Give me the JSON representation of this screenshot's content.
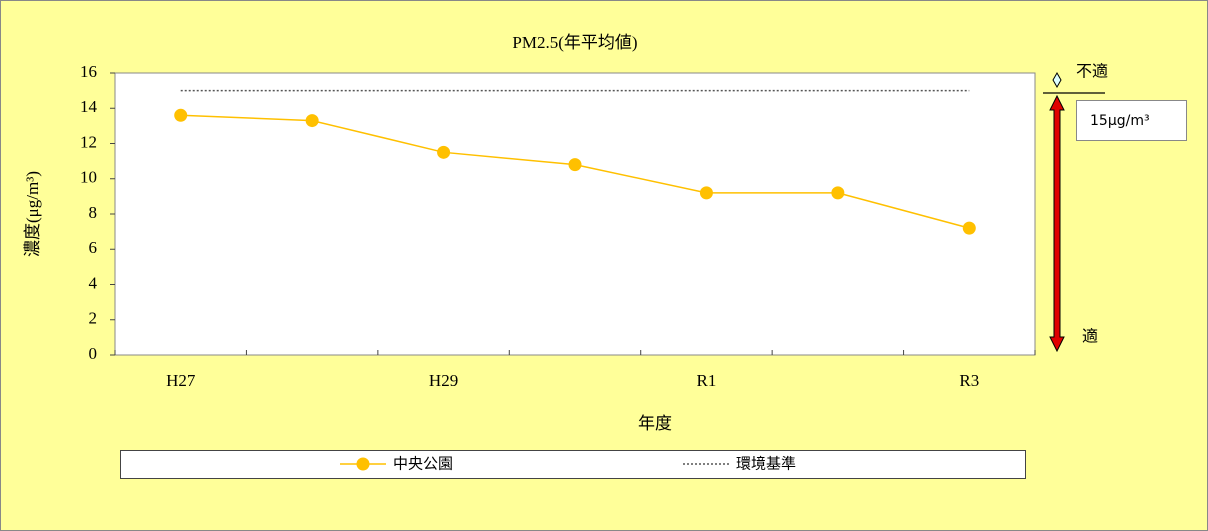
{
  "chart_data": {
    "type": "line",
    "title": "PM2.5(年平均値)",
    "x_label": "年度",
    "y_label": "濃度(μg/m³)",
    "categories": [
      "H27",
      null,
      "H29",
      null,
      "R1",
      null,
      "R3"
    ],
    "series": [
      {
        "name": "中央公園",
        "color": "#ffc000",
        "style": "solid-marker",
        "values": [
          13.6,
          13.3,
          11.5,
          10.8,
          9.2,
          9.2,
          7.2
        ]
      },
      {
        "name": "環境基準",
        "color": "#555555",
        "style": "dotted",
        "values": [
          15,
          15,
          15,
          15,
          15,
          15,
          15
        ]
      }
    ],
    "ylim": [
      0,
      16
    ],
    "yticks": [
      0,
      2,
      4,
      6,
      8,
      10,
      12,
      14,
      16
    ],
    "grid": false,
    "legend": "bottom",
    "annotations": [
      "不適",
      "15μg/m³",
      "適"
    ]
  }
}
